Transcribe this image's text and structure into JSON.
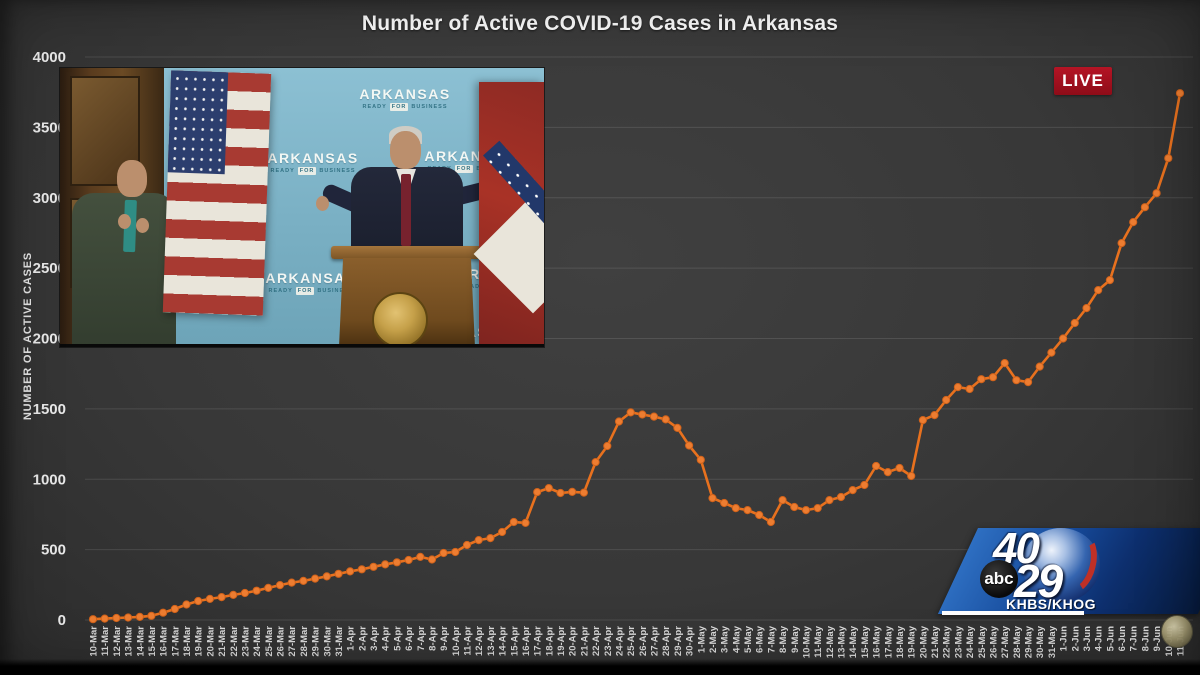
{
  "title": "Number of Active COVID-19 Cases in Arkansas",
  "live_badge": "LIVE",
  "colors": {
    "background": "#383838",
    "series_orange": "#ED7D31",
    "live_red": "#A6121F",
    "backdrop_blue": "#7FB5C8",
    "logo_blue": "#164A9A"
  },
  "chart_data": {
    "type": "line",
    "title": "Number of Active COVID-19 Cases in Arkansas",
    "xlabel": "",
    "ylabel": "NUMBER OF ACTIVE CASES",
    "ylim": [
      0,
      4000
    ],
    "yticks": [
      0,
      500,
      1000,
      1500,
      2000,
      2500,
      3000,
      3500,
      4000
    ],
    "grid": "horizontal",
    "legend": "none",
    "line_color": "#ED7D31",
    "marker": "circle",
    "categories": [
      "10-Mar",
      "11-Mar",
      "12-Mar",
      "13-Mar",
      "14-Mar",
      "15-Mar",
      "16-Mar",
      "17-Mar",
      "18-Mar",
      "19-Mar",
      "20-Mar",
      "21-Mar",
      "22-Mar",
      "23-Mar",
      "24-Mar",
      "25-Mar",
      "26-Mar",
      "27-Mar",
      "28-Mar",
      "29-Mar",
      "30-Mar",
      "31-Mar",
      "1-Apr",
      "2-Apr",
      "3-Apr",
      "4-Apr",
      "5-Apr",
      "6-Apr",
      "7-Apr",
      "8-Apr",
      "9-Apr",
      "10-Apr",
      "11-Apr",
      "12-Apr",
      "13-Apr",
      "14-Apr",
      "15-Apr",
      "16-Apr",
      "17-Apr",
      "18-Apr",
      "19-Apr",
      "20-Apr",
      "21-Apr",
      "22-Apr",
      "23-Apr",
      "24-Apr",
      "25-Apr",
      "26-Apr",
      "27-Apr",
      "28-Apr",
      "29-Apr",
      "30-Apr",
      "1-May",
      "2-May",
      "3-May",
      "4-May",
      "5-May",
      "6-May",
      "7-May",
      "8-May",
      "9-May",
      "10-May",
      "11-May",
      "12-May",
      "13-May",
      "14-May",
      "15-May",
      "16-May",
      "17-May",
      "18-May",
      "19-May",
      "20-May",
      "21-May",
      "22-May",
      "23-May",
      "24-May",
      "25-May",
      "26-May",
      "27-May",
      "28-May",
      "29-May",
      "30-May",
      "31-May",
      "1-Jun",
      "2-Jun",
      "3-Jun",
      "4-Jun",
      "5-Jun",
      "6-Jun",
      "7-Jun",
      "8-Jun",
      "9-Jun",
      "10-Jun",
      "11-Jun"
    ],
    "values": [
      6,
      10,
      14,
      18,
      22,
      30,
      52,
      78,
      110,
      135,
      150,
      163,
      178,
      192,
      208,
      228,
      248,
      266,
      278,
      294,
      310,
      328,
      345,
      360,
      378,
      395,
      410,
      426,
      448,
      430,
      476,
      483,
      533,
      568,
      582,
      625,
      696,
      690,
      909,
      937,
      902,
      910,
      905,
      1122,
      1236,
      1410,
      1475,
      1460,
      1445,
      1425,
      1365,
      1240,
      1138,
      866,
      831,
      795,
      781,
      746,
      696,
      852,
      803,
      781,
      795,
      852,
      874,
      923,
      959,
      1094,
      1051,
      1080,
      1023,
      1420,
      1456,
      1563,
      1655,
      1641,
      1711,
      1725,
      1825,
      1704,
      1690,
      1800,
      1900,
      2000,
      2110,
      2216,
      2344,
      2415,
      2678,
      2827,
      2933,
      3032,
      3281,
      3743
    ]
  },
  "video": {
    "backdrop_brand": "ARKANSAS",
    "tagline_ready": "READY",
    "tagline_for": "FOR",
    "tagline_business": "BUSINESS"
  },
  "station_logo": {
    "number_top": "40",
    "number_bottom": "29",
    "network": "abc",
    "callsigns": "KHBS/KHOG"
  }
}
